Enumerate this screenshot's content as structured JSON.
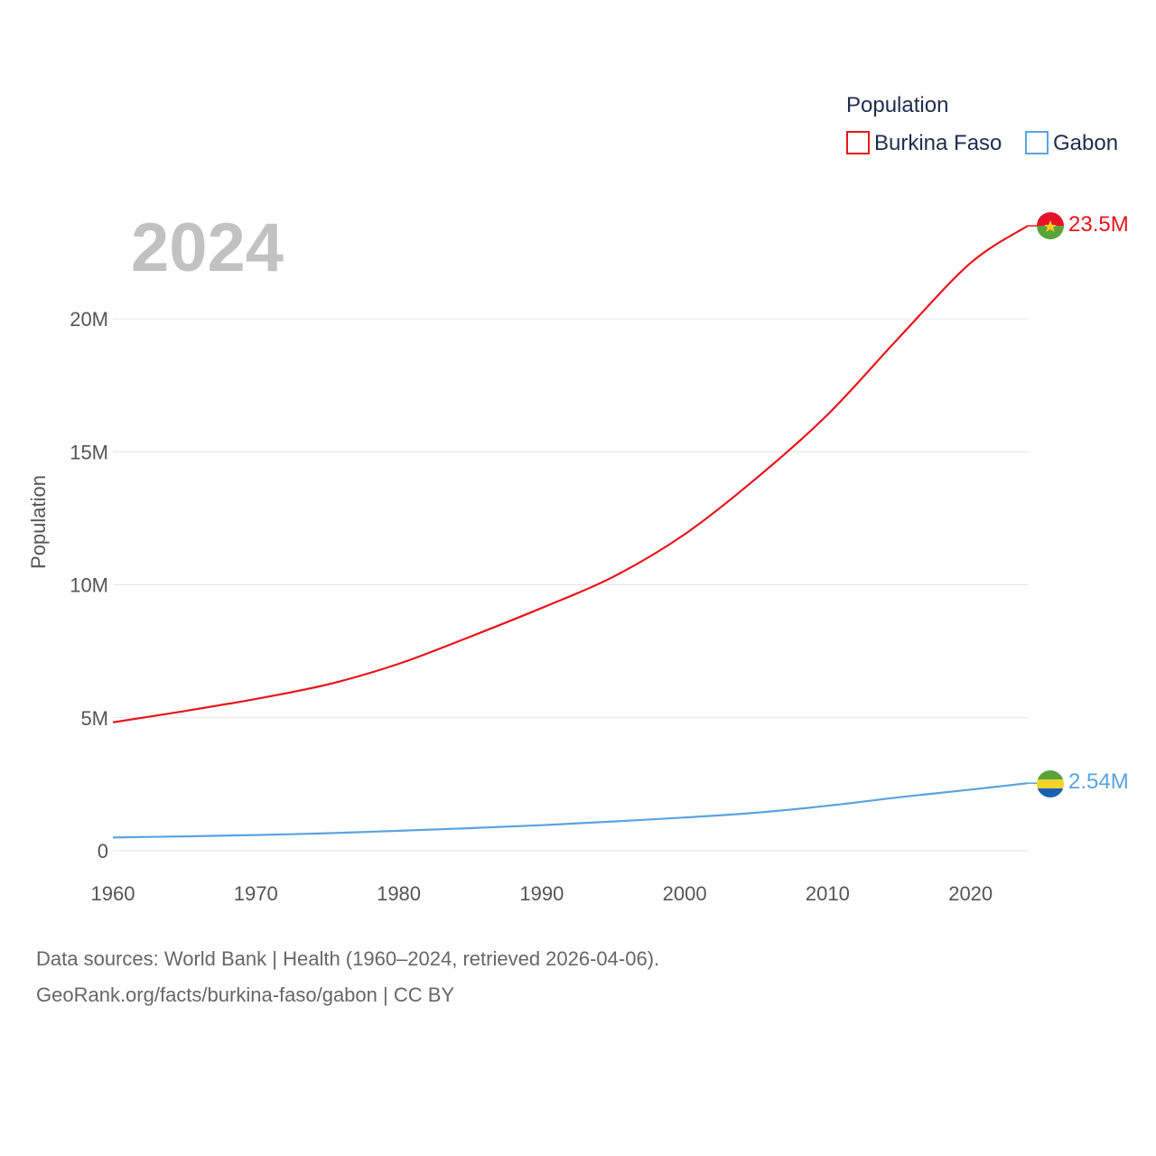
{
  "chart_data": {
    "type": "line",
    "title": "",
    "year_label": "2024",
    "legend": {
      "title": "Population",
      "placement": "top-right"
    },
    "xlabel": "",
    "ylabel": "Population",
    "xlim": [
      1960,
      2024
    ],
    "ylim": [
      0,
      23500000
    ],
    "x_ticks": [
      {
        "value": 1960,
        "label": "1960"
      },
      {
        "value": 1970,
        "label": "1970"
      },
      {
        "value": 1980,
        "label": "1980"
      },
      {
        "value": 1990,
        "label": "1990"
      },
      {
        "value": 2000,
        "label": "2000"
      },
      {
        "value": 2010,
        "label": "2010"
      },
      {
        "value": 2020,
        "label": "2020"
      }
    ],
    "y_ticks": [
      {
        "value": 0,
        "label": "0"
      },
      {
        "value": 5000000,
        "label": "5M"
      },
      {
        "value": 10000000,
        "label": "10M"
      },
      {
        "value": 15000000,
        "label": "15M"
      },
      {
        "value": 20000000,
        "label": "20M"
      }
    ],
    "grid": true,
    "series": [
      {
        "name": "Burkina Faso",
        "color": "#e8141b",
        "flag": "burkina-faso-flag",
        "end_label": "23.5M",
        "x": [
          1960,
          1965,
          1970,
          1975,
          1980,
          1985,
          1990,
          1995,
          2000,
          2005,
          2010,
          2015,
          2020,
          2024
        ],
        "values": [
          4830000,
          5250000,
          5710000,
          6250000,
          7030000,
          8050000,
          9130000,
          10300000,
          11900000,
          14000000,
          16400000,
          19300000,
          22100000,
          23500000
        ]
      },
      {
        "name": "Gabon",
        "color": "#5ba3e0",
        "flag": "gabon-flag",
        "end_label": "2.54M",
        "x": [
          1960,
          1965,
          1970,
          1975,
          1980,
          1985,
          1990,
          1995,
          2000,
          2005,
          2010,
          2015,
          2020,
          2024
        ],
        "values": [
          500000,
          540000,
          590000,
          660000,
          750000,
          850000,
          960000,
          1100000,
          1250000,
          1430000,
          1690000,
          2010000,
          2300000,
          2540000
        ]
      }
    ]
  },
  "footer": {
    "line1": "Data sources: World Bank | Health (1960–2024, retrieved 2026-04-06).",
    "line2": "GeoRank.org/facts/burkina-faso/gabon | CC BY"
  }
}
